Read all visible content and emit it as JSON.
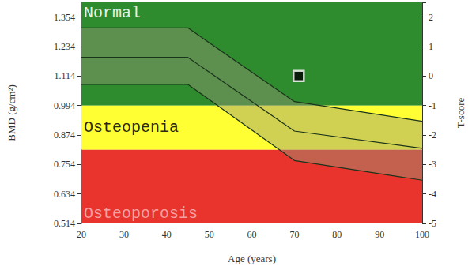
{
  "chart_data": {
    "type": "line",
    "xlabel": "Age (years)",
    "ylabel": "BMD (g/cm²)",
    "y2label": "T-score",
    "xlim": [
      20,
      100
    ],
    "xticks": [
      20,
      30,
      40,
      50,
      60,
      70,
      80,
      90,
      100
    ],
    "ylim": [
      0.514,
      1.414
    ],
    "yticks": [
      0.514,
      0.634,
      0.754,
      0.874,
      0.994,
      1.114,
      1.234,
      1.354
    ],
    "y2lim": [
      -5,
      2.5
    ],
    "y2ticks": [
      -5,
      -4,
      -3,
      -2,
      -1,
      0,
      1,
      2
    ],
    "grid": false,
    "x": [
      20,
      45,
      70,
      100
    ],
    "zones": [
      {
        "label": "Normal",
        "from": 0.994,
        "to": 1.414,
        "color": "#2e8b2e"
      },
      {
        "label": "Osteopenia",
        "from": 0.814,
        "to": 0.994,
        "color": "#ffff33"
      },
      {
        "label": "Osteoporosis",
        "from": 0.514,
        "to": 0.814,
        "color": "#e8342c"
      }
    ],
    "series": [
      {
        "type": "line",
        "color": "#1a331a",
        "values": [
          1.31,
          1.31,
          1.01,
          0.93
        ]
      },
      {
        "type": "line",
        "color": "#1a331a",
        "values": [
          1.19,
          1.19,
          0.89,
          0.82
        ]
      },
      {
        "type": "line",
        "color": "#1a331a",
        "values": [
          1.08,
          1.08,
          0.77,
          0.69
        ]
      },
      {
        "type": "scatter",
        "color": "#000000",
        "marker": "square",
        "x": [
          71
        ],
        "values": [
          1.114
        ]
      }
    ]
  }
}
